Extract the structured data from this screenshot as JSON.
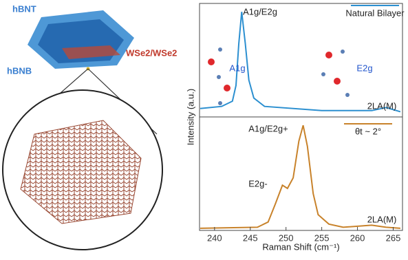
{
  "diagram": {
    "top_layer": "hBNT",
    "bottom_layer": "hBNB",
    "bilayer": "WSe2/WSe2"
  },
  "chart_data": [
    {
      "type": "line",
      "y_label": "Intensity (a.u.)",
      "x": [
        238,
        241,
        242.5,
        243,
        243.4,
        243.8,
        244.3,
        244.8,
        245.5,
        247,
        255,
        262,
        264,
        266
      ],
      "series": [
        {
          "name": "Natural Bilayer",
          "color": "#2b8fd0",
          "values": [
            0.08,
            0.1,
            0.15,
            0.3,
            0.7,
            1.0,
            0.7,
            0.35,
            0.18,
            0.1,
            0.06,
            0.06,
            0.09,
            0.05
          ]
        }
      ],
      "annotations": [
        "A1g/E2g",
        "A1g",
        "E2g",
        "2LA(M)"
      ],
      "xlim": [
        237.9,
        266.3
      ],
      "ylim": [
        0,
        1.08
      ]
    },
    {
      "type": "line",
      "x_label": "Raman Shift (cm⁻¹)",
      "x": [
        238,
        246,
        247.5,
        248.5,
        249.5,
        250.2,
        251,
        251.8,
        252.4,
        253,
        253.8,
        254.5,
        256,
        258,
        262,
        264,
        266
      ],
      "series": [
        {
          "name": "θt ~ 2°",
          "color": "#c8822a",
          "values": [
            0.02,
            0.03,
            0.08,
            0.25,
            0.43,
            0.4,
            0.5,
            0.85,
            1.0,
            0.8,
            0.35,
            0.15,
            0.06,
            0.03,
            0.05,
            0.03,
            0.02
          ]
        }
      ],
      "annotations": [
        "A1g/E2g+",
        "E2g-",
        "2LA(M)"
      ],
      "xlim": [
        237.9,
        266.3
      ],
      "ylim": [
        0,
        1.08
      ],
      "xticks": [
        240,
        245,
        250,
        255,
        260,
        265
      ]
    }
  ]
}
